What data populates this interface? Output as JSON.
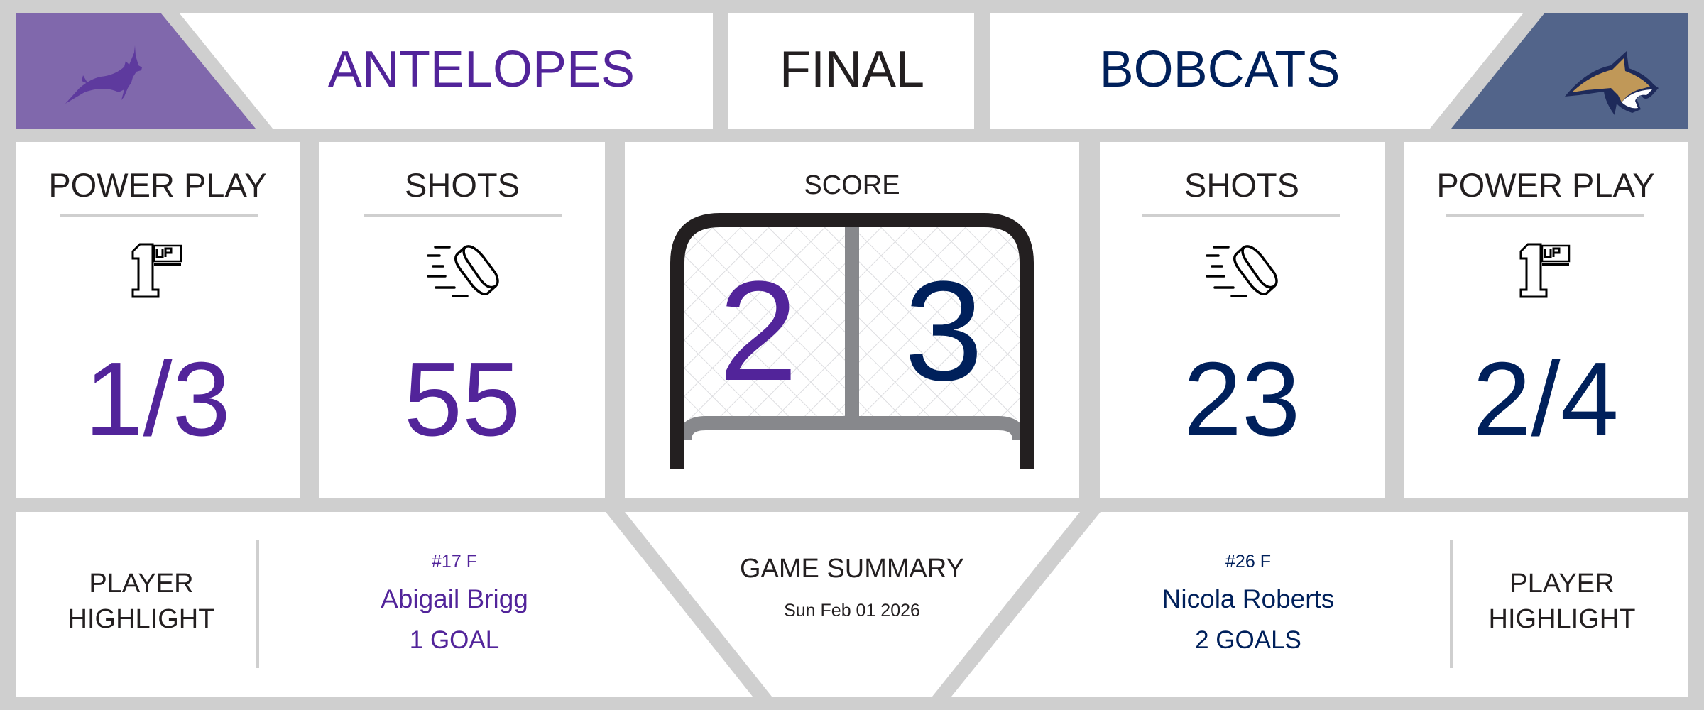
{
  "colors": {
    "home": "#52249a",
    "away": "#00205b",
    "home_logo_bg": "#8068ac",
    "away_logo_bg": "#52648a",
    "background": "#cfcfcf",
    "goal_frame": "#231f20",
    "goal_post": "#87888c",
    "bobcat_gold": "#c09858"
  },
  "header": {
    "home_logo": "antelope-logo",
    "home_team": "ANTELOPES",
    "status": "FINAL",
    "away_team": "BOBCATS",
    "away_logo": "bobcat-logo"
  },
  "stats": {
    "home_power_play": {
      "label": "POWER PLAY",
      "icon": "1up-icon",
      "value": "1/3"
    },
    "home_shots": {
      "label": "SHOTS",
      "icon": "puck-icon",
      "value": "55"
    },
    "score": {
      "label": "SCORE",
      "icon": "hockey-net",
      "home": "2",
      "away": "3"
    },
    "away_shots": {
      "label": "SHOTS",
      "icon": "puck-icon",
      "value": "23"
    },
    "away_power_play": {
      "label": "POWER PLAY",
      "icon": "1up-icon",
      "value": "2/4"
    }
  },
  "footer": {
    "home_highlight": {
      "label_line1": "PLAYER",
      "label_line2": "HIGHLIGHT",
      "number": "#17 F",
      "name": "Abigail Brigg",
      "stat": "1 GOAL"
    },
    "summary": {
      "title": "GAME SUMMARY",
      "date": "Sun Feb 01 2026"
    },
    "away_highlight": {
      "label_line1": "PLAYER",
      "label_line2": "HIGHLIGHT",
      "number": "#26 F",
      "name": "Nicola Roberts",
      "stat": "2 GOALS"
    }
  }
}
